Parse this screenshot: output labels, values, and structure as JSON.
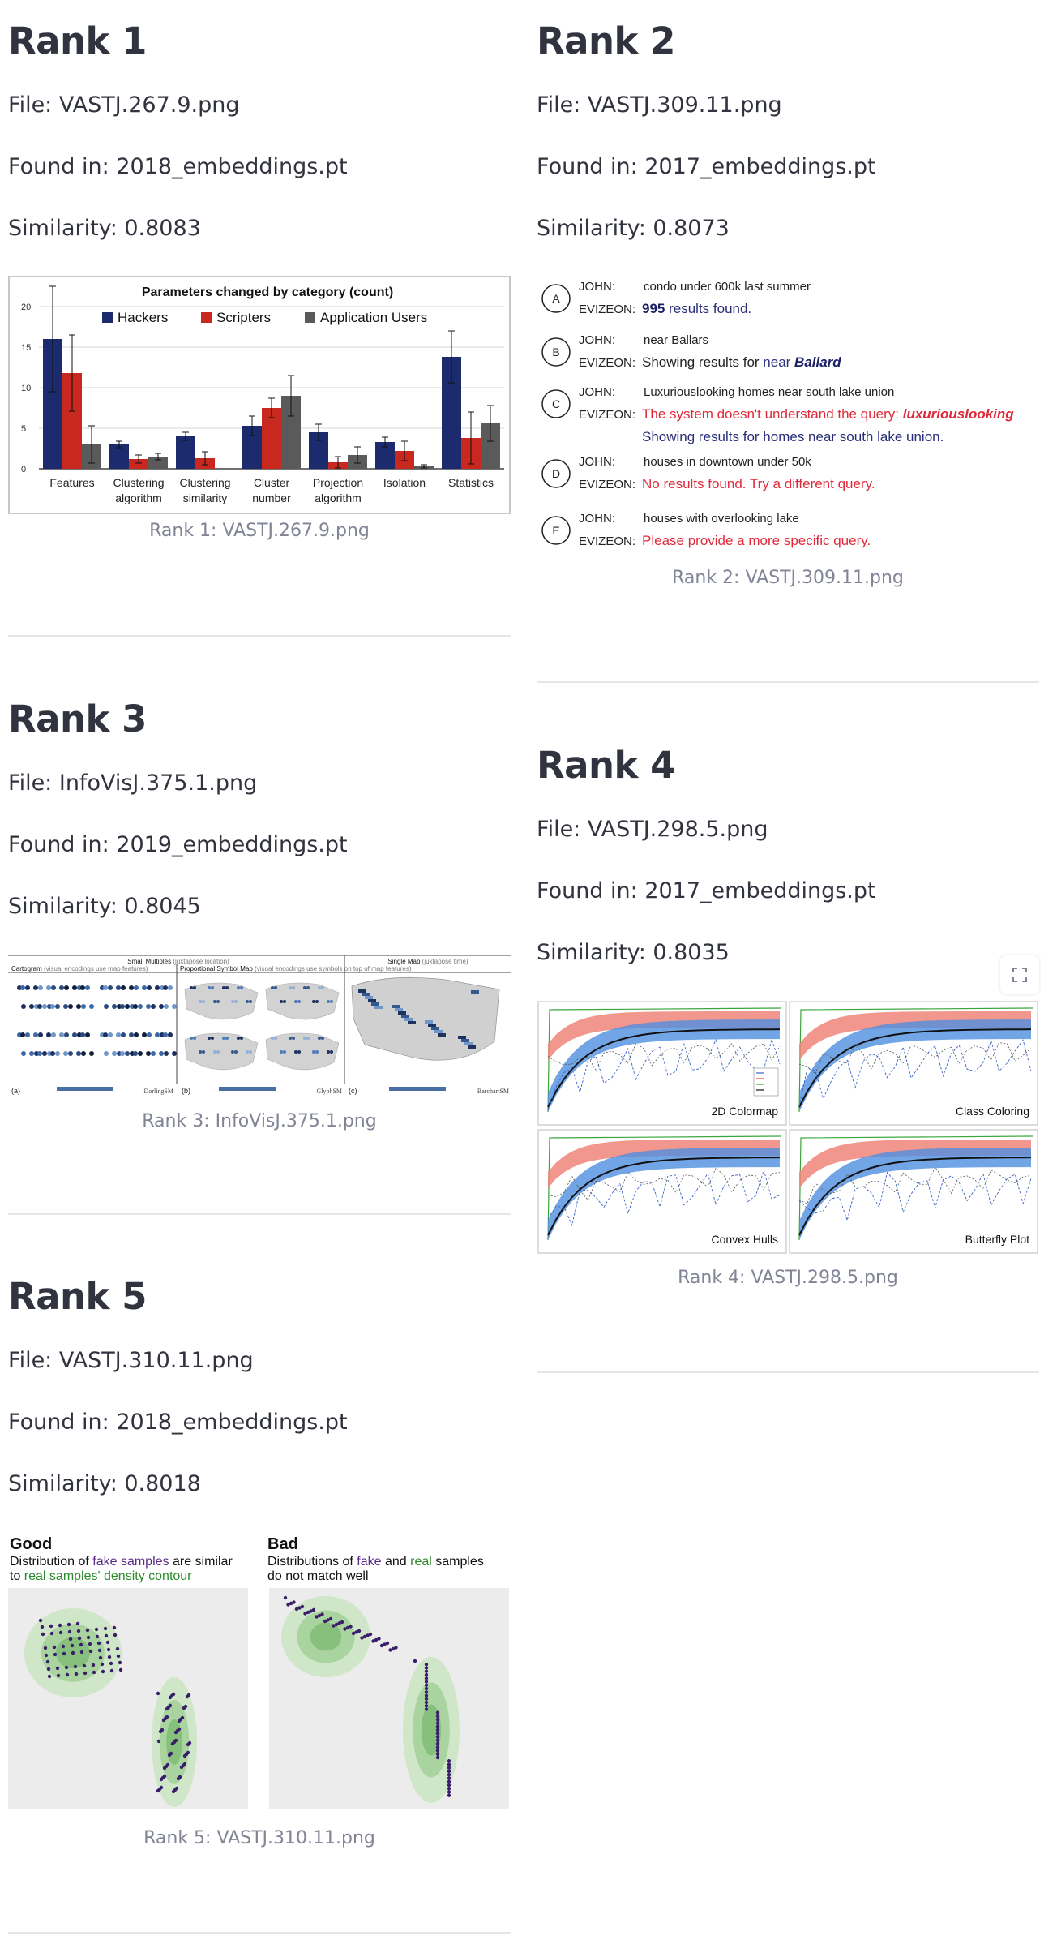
{
  "results": [
    {
      "rank_title": "Rank 1",
      "file": "File: VASTJ.267.9.png",
      "found": "Found in: 2018_embeddings.pt",
      "similarity": "Similarity: 0.8083",
      "caption": "Rank 1: VASTJ.267.9.png"
    },
    {
      "rank_title": "Rank 2",
      "file": "File: VASTJ.309.11.png",
      "found": "Found in: 2017_embeddings.pt",
      "similarity": "Similarity: 0.8073",
      "caption": "Rank 2: VASTJ.309.11.png"
    },
    {
      "rank_title": "Rank 3",
      "file": "File: InfoVisJ.375.1.png",
      "found": "Found in: 2019_embeddings.pt",
      "similarity": "Similarity: 0.8045",
      "caption": "Rank 3: InfoVisJ.375.1.png"
    },
    {
      "rank_title": "Rank 4",
      "file": "File: VASTJ.298.5.png",
      "found": "Found in: 2017_embeddings.pt",
      "similarity": "Similarity: 0.8035",
      "caption": "Rank 4: VASTJ.298.5.png"
    },
    {
      "rank_title": "Rank 5",
      "file": "File: VASTJ.310.11.png",
      "found": "Found in: 2018_embeddings.pt",
      "similarity": "Similarity: 0.8018",
      "caption": "Rank 5: VASTJ.310.11.png"
    }
  ],
  "fig1": {
    "title": "Parameters changed by category (count)",
    "legend": [
      "Hackers",
      "Scripters",
      "Application Users"
    ],
    "colors": [
      "#1c2a6e",
      "#c8281e",
      "#5a5a5a"
    ],
    "yticks": [
      "0",
      "5",
      "10",
      "15",
      "20"
    ],
    "ymax": 20,
    "categories": [
      [
        "Features"
      ],
      [
        "Clustering",
        "algorithm"
      ],
      [
        "Clustering",
        "similarity"
      ],
      [
        "Cluster",
        "number"
      ],
      [
        "Projection",
        "algorithm"
      ],
      [
        "Isolation"
      ],
      [
        "Statistics"
      ]
    ],
    "values": [
      [
        16,
        11.8,
        3
      ],
      [
        3,
        1.2,
        1.5
      ],
      [
        4,
        1.3,
        0
      ],
      [
        5.3,
        7.5,
        9
      ],
      [
        4.5,
        0.8,
        1.7
      ],
      [
        3.3,
        2.2,
        0.3
      ],
      [
        13.8,
        3.8,
        5.6
      ]
    ],
    "errors": [
      [
        6.5,
        4.7,
        2.3
      ],
      [
        0.4,
        0.5,
        0.4
      ],
      [
        0.5,
        0.8,
        0
      ],
      [
        1.2,
        1.2,
        2.5
      ],
      [
        1,
        0.7,
        1
      ],
      [
        0.6,
        1.2,
        0.2
      ],
      [
        3.2,
        3.2,
        2.2
      ]
    ]
  },
  "fig2": {
    "rows": [
      {
        "badge": "A",
        "q": "condo under 600k last summer",
        "r_parts": [
          {
            "t": "995",
            "style": "bold-navy"
          },
          {
            "t": " results found.",
            "style": "navy"
          }
        ]
      },
      {
        "badge": "B",
        "q": "near Ballars",
        "r_parts": [
          {
            "t": "Showing results for ",
            "style": "dark"
          },
          {
            "t": "near ",
            "style": "navy"
          },
          {
            "t": "Ballard",
            "style": "bold-italic-navy"
          }
        ]
      },
      {
        "badge": "C",
        "q": "Luxuriouslooking homes near south lake union",
        "r_parts": [
          {
            "t": "The system doesn't understand the query: ",
            "style": "red"
          },
          {
            "t": "luxuriouslooking",
            "style": "bold-italic-red"
          }
        ],
        "r2": "Showing results for homes near south lake union."
      },
      {
        "badge": "D",
        "q": "houses in downtown under 50k",
        "r_parts": [
          {
            "t": "No results found. Try a different query.",
            "style": "red"
          }
        ]
      },
      {
        "badge": "E",
        "q": "houses with overlooking lake",
        "r_parts": [
          {
            "t": "Please provide a more specific query.",
            "style": "red"
          }
        ]
      }
    ],
    "john": "JOHN:",
    "evizeon": "EVIZEON:"
  },
  "fig3": {
    "small_multiples": "Small Multiples",
    "small_multiples_note": "(juxtapose location)",
    "single_map": "Single Map",
    "single_map_note": "(juxtapose time)",
    "cartogram": "Cartogram",
    "cartogram_note": "(visual encodings use map features)",
    "psm": "Proportional Symbol Map",
    "psm_note": "(visual encodings use symbols on top of map features)",
    "a": "(a)",
    "b": "(b)",
    "c": "(c)",
    "a_name": "DorlingSM",
    "b_name": "GlyphSM",
    "c_name": "BarchartSM"
  },
  "fig4": {
    "panels": [
      "2D Colormap",
      "Class Coloring",
      "Convex Hulls",
      "Butterfly Plot"
    ]
  },
  "fig5": {
    "good": "Good",
    "bad": "Bad",
    "good_line1_a": "Distribution of ",
    "good_line1_b": "fake samples",
    "good_line1_c": " are similar",
    "good_line2_a": "to ",
    "good_line2_b": "real samples' density contour",
    "bad_line1_a": "Distributions of ",
    "bad_line1_b": "fake",
    "bad_line1_c": " and ",
    "bad_line1_d": "real",
    "bad_line1_e": " samples",
    "bad_line2": "do not match well"
  }
}
